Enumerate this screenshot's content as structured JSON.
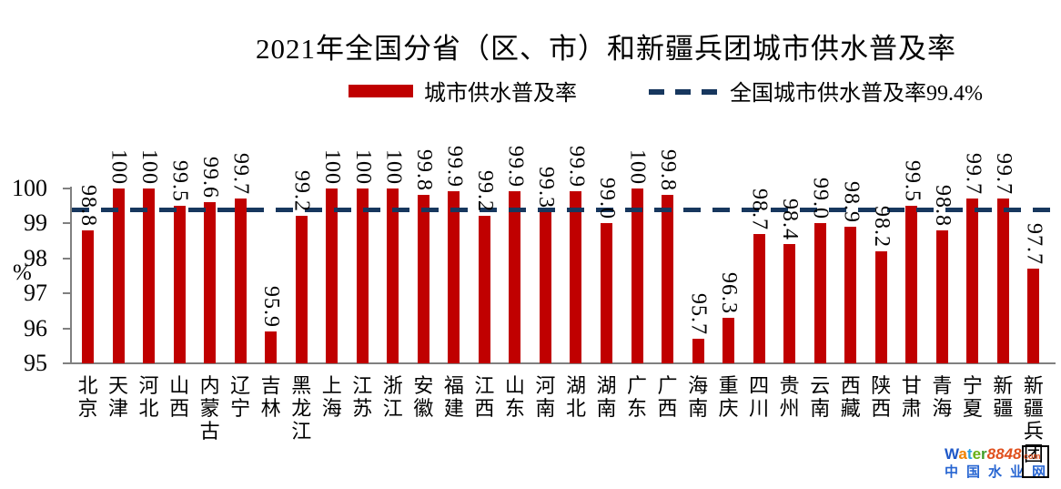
{
  "title": "2021年全国分省（区、市）和新疆兵团城市供水普及率",
  "legend": {
    "bar_label": "城市供水普及率",
    "line_label": "全国城市供水普及率99.4%"
  },
  "colors": {
    "bar": "#c00000",
    "reference_line": "#17375e",
    "axis": "#808080"
  },
  "y_axis": {
    "unit_label": "%",
    "ticks": [
      100,
      99,
      98,
      97,
      96,
      95
    ]
  },
  "chart_data": {
    "type": "bar",
    "title": "2021年全国分省（区、市）和新疆兵团城市供水普及率",
    "categories": [
      "北京",
      "天津",
      "河北",
      "山西",
      "内蒙古",
      "辽宁",
      "吉林",
      "黑龙江",
      "上海",
      "江苏",
      "浙江",
      "安徽",
      "福建",
      "江西",
      "山东",
      "河南",
      "湖北",
      "湖南",
      "广东",
      "广西",
      "海南",
      "重庆",
      "四川",
      "贵州",
      "云南",
      "西藏",
      "陕西",
      "甘肃",
      "青海",
      "宁夏",
      "新疆",
      "新疆兵团"
    ],
    "values": [
      98.8,
      100,
      100,
      99.5,
      99.6,
      99.7,
      95.9,
      99.2,
      100,
      100,
      100,
      99.8,
      99.9,
      99.2,
      99.9,
      99.3,
      99.9,
      99.0,
      100,
      99.8,
      95.7,
      96.3,
      98.7,
      98.4,
      99.0,
      98.9,
      98.2,
      99.5,
      98.8,
      99.7,
      99.7,
      97.7
    ],
    "value_labels": [
      "98.8",
      "100",
      "100",
      "99.5",
      "99.6",
      "99.7",
      "95.9",
      "99.2",
      "100",
      "100",
      "100",
      "99.8",
      "99.9",
      "99.2",
      "99.9",
      "99.3",
      "99.9",
      "99.0",
      "100",
      "99.8",
      "95.7",
      "96.3",
      "98.7",
      "98.4",
      "99.0",
      "98.9",
      "98.2",
      "99.5",
      "98.8",
      "99.7",
      "99.7",
      "97.7"
    ],
    "series_name": "城市供水普及率",
    "xlabel": "",
    "ylabel": "%",
    "ylim": [
      95,
      100
    ],
    "grid": false,
    "legend_position": "top",
    "reference_line": {
      "value": 99.4,
      "label": "全国城市供水普及率99.4%"
    }
  },
  "watermark": {
    "logo_segments": [
      {
        "text": "W",
        "color": "#1f58c8"
      },
      {
        "text": "a",
        "color": "#f08200"
      },
      {
        "text": "t",
        "color": "#2ba0dc"
      },
      {
        "text": "e",
        "color": "#6ab014"
      },
      {
        "text": "r",
        "color": "#3f9e28"
      },
      {
        "text": "8848",
        "color": "#e0501e",
        "italic": true
      },
      {
        "text": ".com",
        "color": "#e0501e",
        "small": true
      }
    ],
    "site_name": "中国水业网"
  }
}
